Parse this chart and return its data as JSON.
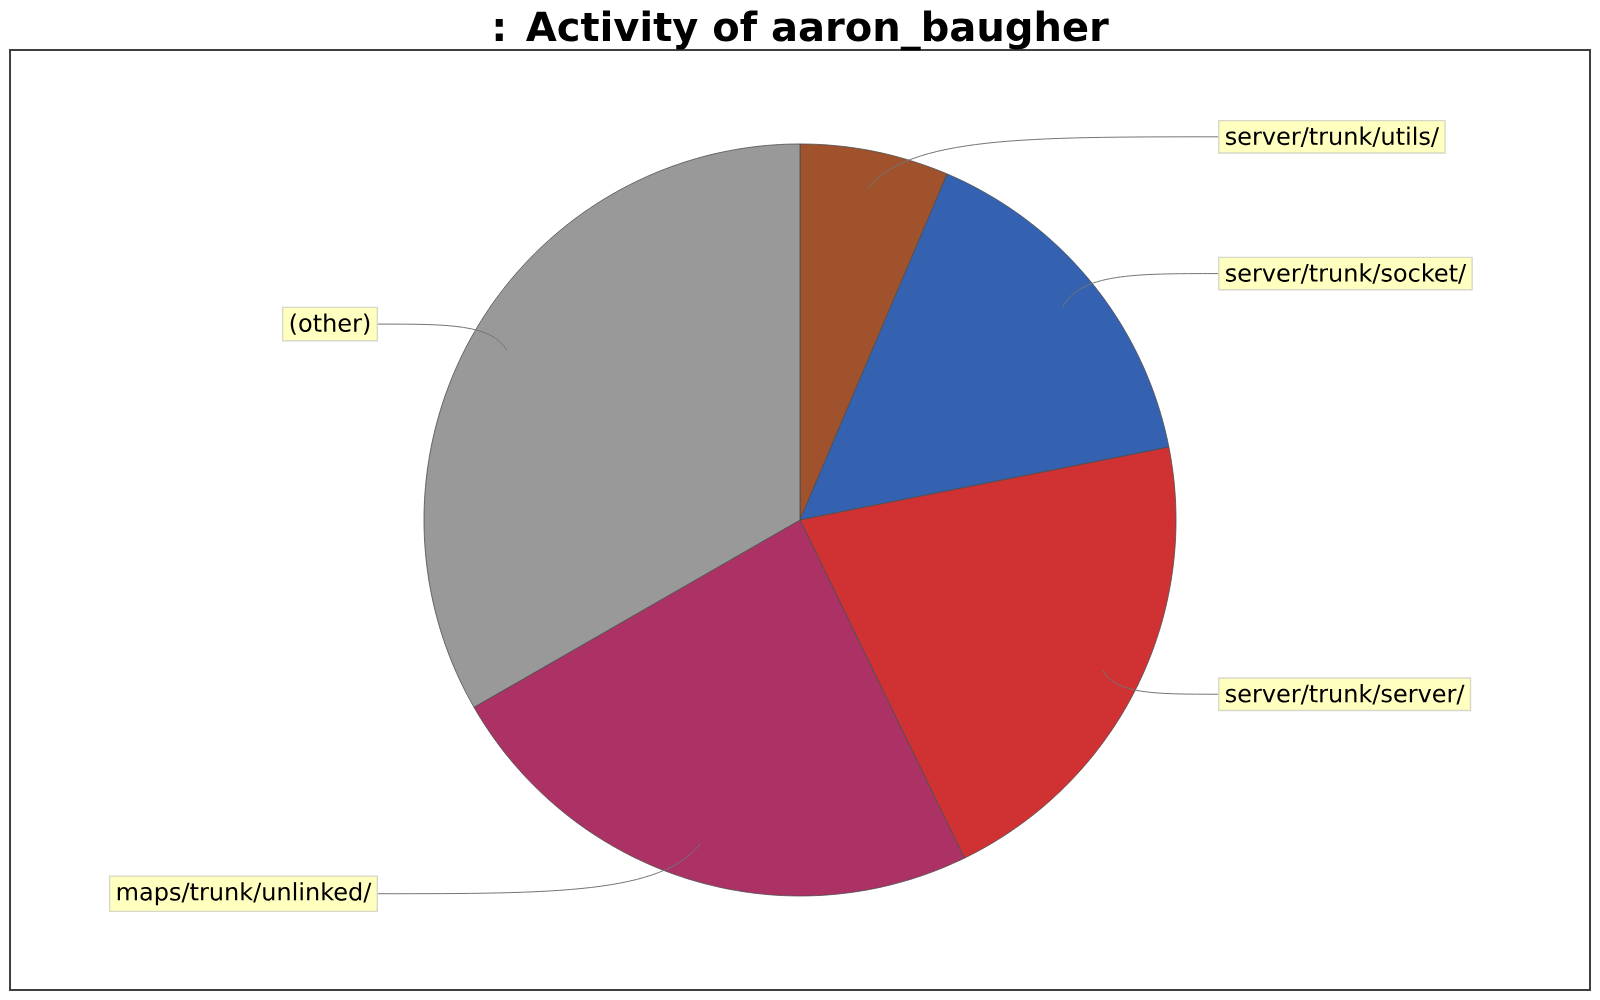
{
  "chart_data": {
    "type": "pie",
    "title": ": Activity of aaron_baugher",
    "categories": [
      "server/trunk/utils/",
      "server/trunk/socket/",
      "server/trunk/server/",
      "maps/trunk/unlinked/",
      "(other)"
    ],
    "values": [
      6.4,
      15.5,
      20.9,
      23.9,
      33.3
    ],
    "colors": [
      "#a0522d",
      "#3462b1",
      "#d03234",
      "#ac3265",
      "#999999"
    ]
  }
}
